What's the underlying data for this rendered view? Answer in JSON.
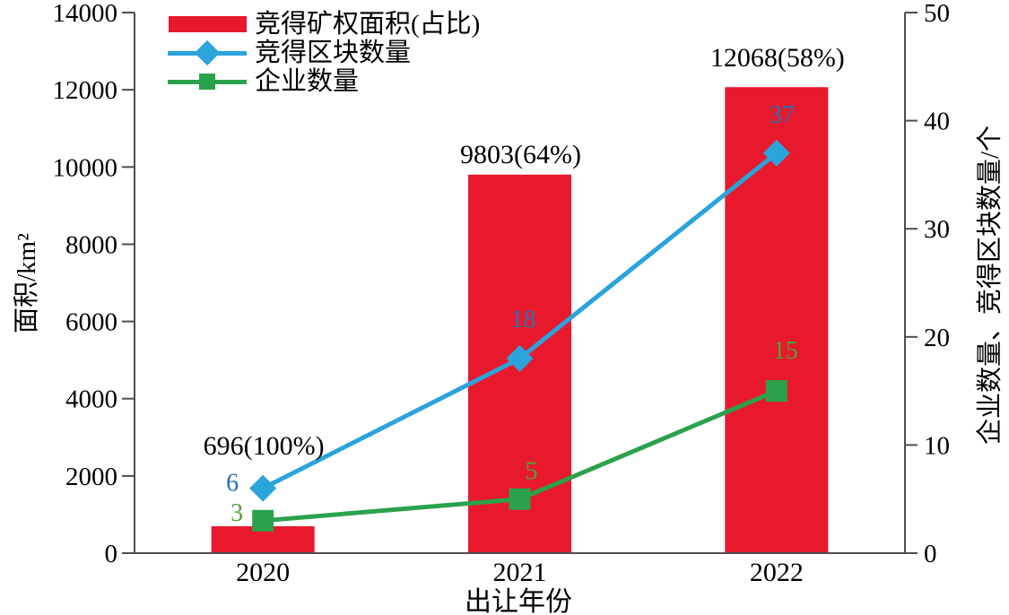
{
  "chart_data": {
    "type": "bar",
    "subtype": "combo-bar-line-dual-axis",
    "categories": [
      "2020",
      "2021",
      "2022"
    ],
    "xlabel": "出让年份",
    "left_axis": {
      "label": "面积/km²",
      "min": 0,
      "max": 14000,
      "ticks": [
        0,
        2000,
        4000,
        6000,
        8000,
        10000,
        12000,
        14000
      ]
    },
    "right_axis": {
      "label": "企业数量、竞得区块数量/个",
      "min": 0,
      "max": 50,
      "ticks": [
        0,
        10,
        20,
        30,
        40,
        50
      ]
    },
    "bar_series": {
      "name": "竞得矿权面积(占比)",
      "axis": "left",
      "color": "#e8192c",
      "values": [
        696,
        9803,
        12068
      ],
      "annotations": [
        "696(100%)",
        "9803(64%)",
        "12068(58%)"
      ]
    },
    "line_series": [
      {
        "name": "竞得区块数量",
        "axis": "right",
        "marker": "diamond",
        "color": "#2ba3db",
        "label_color": "#2b6fb4",
        "values": [
          6,
          18,
          37
        ]
      },
      {
        "name": "企业数量",
        "axis": "right",
        "marker": "square",
        "color": "#2aa24c",
        "label_color": "#55a03b",
        "values": [
          3,
          5,
          15
        ]
      }
    ],
    "legend_position": "top-left",
    "grid": false,
    "axis_color": "#4d4d4d",
    "text_color": "#000000"
  }
}
